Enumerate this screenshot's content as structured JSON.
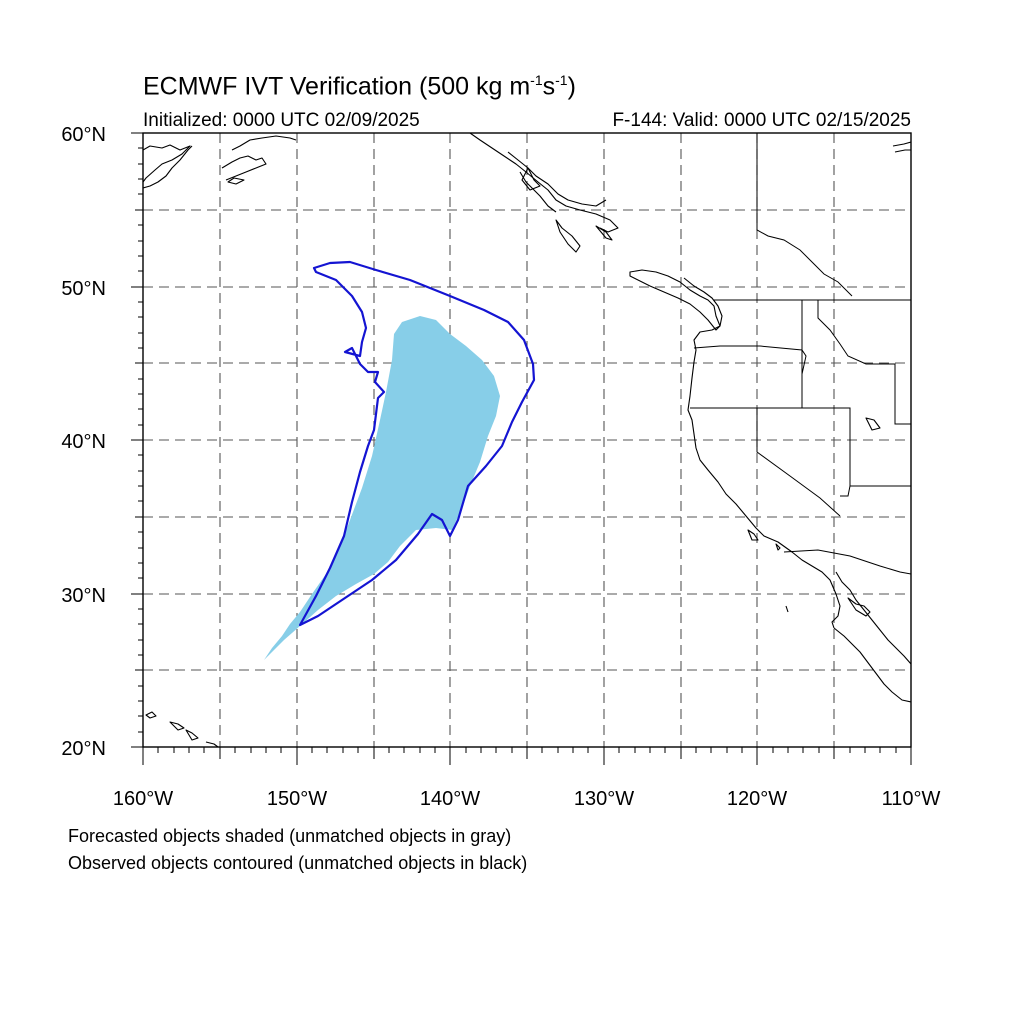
{
  "title": {
    "prefix": "ECMWF IVT Verification (500 kg m",
    "exp1": "-1",
    "mid": "s",
    "exp2": "-1",
    "suffix": ")"
  },
  "initialized": "Initialized: 0000 UTC 02/09/2025",
  "valid": "F-144: Valid: 0000 UTC 02/15/2025",
  "map": {
    "lon_range": [
      -160,
      -110
    ],
    "lat_range": [
      20,
      60
    ],
    "lat_labels": [
      "60°N",
      "50°N",
      "40°N",
      "30°N",
      "20°N"
    ],
    "lon_labels": [
      "160°W",
      "150°W",
      "140°W",
      "130°W",
      "120°W",
      "110°W"
    ],
    "gridlines": "dashed every 5°",
    "forecast_fill_color": "#87CEE8",
    "observed_contour_color": "#1414d2",
    "coastline_color": "#000000"
  },
  "notes": {
    "line1": "Forecasted objects shaded (unmatched objects in gray)",
    "line2": "Observed objects contoured (unmatched objects in black)"
  }
}
